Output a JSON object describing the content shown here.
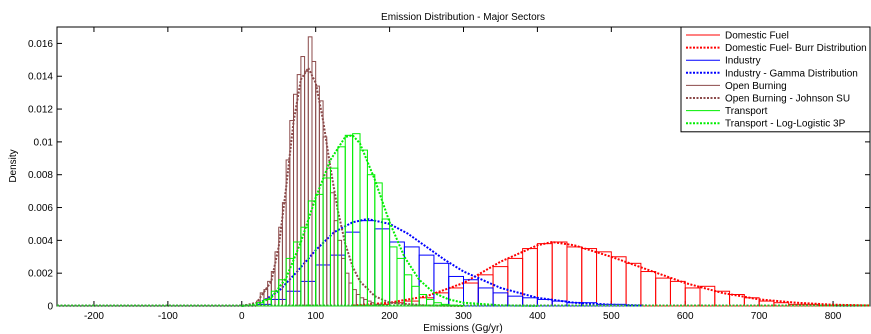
{
  "chart_data": {
    "type": "histogram+line",
    "title": "Emission Distribution - Major Sectors",
    "xlabel": "Emissions (Gg/yr)",
    "ylabel": "Density",
    "xlim": [
      -250,
      850
    ],
    "ylim": [
      0,
      0.017
    ],
    "x_ticks": [
      -200,
      -100,
      0,
      100,
      200,
      300,
      400,
      500,
      600,
      700,
      800
    ],
    "y_ticks": [
      0,
      0.002,
      0.004,
      0.006,
      0.008,
      0.01,
      0.012,
      0.014,
      0.016
    ],
    "y_tick_labels": [
      "0",
      "0.002",
      "0.004",
      "0.006",
      "0.008",
      "0.01",
      "0.012",
      "0.014",
      "0.016"
    ],
    "legend_position": "top-right",
    "series": [
      {
        "name": "Domestic Fuel",
        "kind": "histogram",
        "color": "#ff0000",
        "edges": [
          180,
          200,
          220,
          240,
          260,
          280,
          300,
          320,
          340,
          360,
          380,
          400,
          420,
          440,
          460,
          480,
          500,
          520,
          540,
          560,
          580,
          600,
          620,
          640,
          660,
          680,
          700,
          720,
          740,
          760,
          780,
          800
        ],
        "values": [
          0.0001,
          0.0002,
          0.0003,
          0.0005,
          0.0008,
          0.0011,
          0.0014,
          0.0019,
          0.0024,
          0.0029,
          0.0035,
          0.0038,
          0.0039,
          0.0036,
          0.0035,
          0.0033,
          0.003,
          0.0026,
          0.0021,
          0.0017,
          0.0015,
          0.0011,
          0.0012,
          0.0009,
          0.0007,
          0.0005,
          0.0003,
          0.0002,
          0.0001,
          0.0001,
          5e-05
        ]
      },
      {
        "name": "Domestic Fuel- Burr Distribution",
        "kind": "line",
        "dashed": true,
        "color": "#ff0000",
        "x": [
          150,
          200,
          250,
          300,
          350,
          400,
          420,
          450,
          500,
          550,
          600,
          650,
          700,
          750,
          800,
          850
        ],
        "y": [
          3e-05,
          0.0002,
          0.0006,
          0.0014,
          0.0027,
          0.0037,
          0.0039,
          0.0037,
          0.003,
          0.0022,
          0.0014,
          0.0008,
          0.0004,
          0.0002,
          8e-05,
          3e-05
        ]
      },
      {
        "name": "Industry",
        "kind": "histogram",
        "color": "#0000ff",
        "edges": [
          20,
          40,
          60,
          80,
          100,
          120,
          140,
          160,
          180,
          200,
          220,
          240,
          260,
          280,
          300,
          320,
          340,
          360,
          380,
          400,
          420,
          440,
          460,
          480,
          500,
          520,
          540
        ],
        "values": [
          0.0001,
          0.0004,
          0.0009,
          0.0015,
          0.0025,
          0.0031,
          0.0045,
          0.0052,
          0.0047,
          0.0039,
          0.0036,
          0.0031,
          0.0026,
          0.0018,
          0.0016,
          0.0011,
          0.0008,
          0.0006,
          0.0005,
          0.0004,
          0.0003,
          0.0002,
          0.0002,
          0.0001,
          0.0001,
          5e-05
        ]
      },
      {
        "name": "Industry - Gamma Distribution",
        "kind": "line",
        "dashed": true,
        "color": "#0000ff",
        "x": [
          0,
          25,
          50,
          75,
          100,
          125,
          150,
          170,
          200,
          225,
          250,
          275,
          300,
          350,
          400,
          450,
          500,
          550
        ],
        "y": [
          0,
          0.0002,
          0.0009,
          0.0021,
          0.0034,
          0.0045,
          0.0051,
          0.0053,
          0.005,
          0.0044,
          0.0036,
          0.0028,
          0.0021,
          0.0011,
          0.0005,
          0.0002,
          8e-05,
          3e-05
        ]
      },
      {
        "name": "Open Burning",
        "kind": "histogram",
        "color": "#8b4a4a",
        "edges": [
          20,
          25,
          30,
          35,
          40,
          45,
          50,
          55,
          60,
          65,
          70,
          75,
          80,
          85,
          90,
          95,
          100,
          105,
          110,
          115,
          120,
          125,
          130,
          135,
          140,
          145,
          150,
          155,
          160,
          165,
          170,
          175,
          180,
          185,
          190
        ],
        "values": [
          0.0003,
          0.0008,
          0.001,
          0.0015,
          0.0021,
          0.0033,
          0.0048,
          0.0063,
          0.0089,
          0.0113,
          0.0129,
          0.0141,
          0.0152,
          0.0143,
          0.0164,
          0.0149,
          0.0134,
          0.0125,
          0.0103,
          0.0084,
          0.0069,
          0.0052,
          0.004,
          0.0029,
          0.002,
          0.0014,
          0.001,
          0.0007,
          0.0005,
          0.0004,
          0.0003,
          0.0002,
          0.0001,
          0.0001
        ]
      },
      {
        "name": "Open Burning - Johnson SU",
        "kind": "line",
        "dashed": true,
        "color": "#8b4a4a",
        "x": [
          0,
          20,
          40,
          50,
          60,
          70,
          80,
          90,
          100,
          110,
          120,
          130,
          140,
          150,
          160,
          180,
          200,
          250,
          300
        ],
        "y": [
          0,
          0.0002,
          0.0015,
          0.0036,
          0.0072,
          0.0112,
          0.0138,
          0.0145,
          0.0136,
          0.0113,
          0.0084,
          0.0058,
          0.0038,
          0.0024,
          0.0015,
          0.0006,
          0.0002,
          3e-05,
          0
        ]
      },
      {
        "name": "Transport",
        "kind": "histogram",
        "color": "#00ee00",
        "edges": [
          20,
          30,
          40,
          50,
          60,
          70,
          80,
          90,
          100,
          110,
          120,
          130,
          140,
          150,
          160,
          170,
          180,
          190,
          200,
          210,
          220,
          230,
          240,
          250,
          260,
          270,
          280,
          290,
          300
        ],
        "values": [
          0.0002,
          0.0004,
          0.0009,
          0.0016,
          0.0029,
          0.0039,
          0.0048,
          0.0064,
          0.0068,
          0.0078,
          0.0084,
          0.0097,
          0.0104,
          0.0105,
          0.0095,
          0.008,
          0.0075,
          0.0053,
          0.0036,
          0.0029,
          0.0019,
          0.0012,
          0.0007,
          0.0004,
          0.0002,
          0.0001,
          5e-05,
          3e-05
        ]
      },
      {
        "name": "Transport - Log-Logistic 3P",
        "kind": "line",
        "dashed": true,
        "color": "#00ee00",
        "x": [
          0,
          20,
          40,
          60,
          80,
          100,
          120,
          140,
          150,
          160,
          180,
          200,
          220,
          240,
          260,
          280,
          300,
          350,
          400
        ],
        "y": [
          0,
          0.0001,
          0.0005,
          0.0017,
          0.0039,
          0.0066,
          0.0089,
          0.0103,
          0.0104,
          0.0099,
          0.0077,
          0.0051,
          0.003,
          0.0016,
          0.0008,
          0.0004,
          0.0002,
          4e-05,
          0
        ]
      }
    ]
  }
}
